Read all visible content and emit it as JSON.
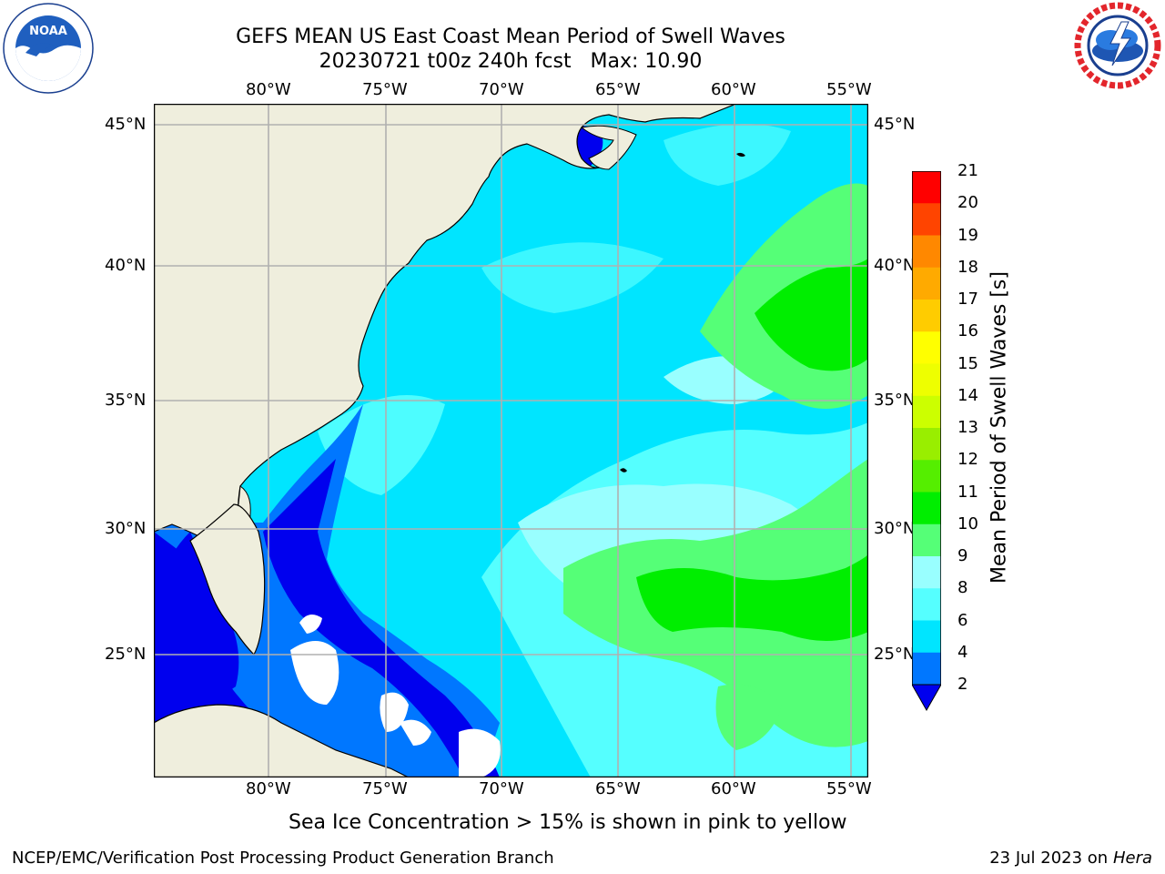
{
  "header": {
    "title_line1": "GEFS MEAN US East Coast Mean Period of Swell Waves",
    "title_line2": "20230721 t00z 240h fcst   Max: 10.90"
  },
  "logos": {
    "noaa": {
      "text": "NOAA",
      "ring_text": "NATIONAL OCEANIC AND ATMOSPHERIC ADMINISTRATION · U.S. DEPARTMENT OF COMMERCE"
    },
    "nws": {
      "ring_text": "NATIONAL WEATHER SERVICE"
    }
  },
  "map": {
    "lon_labels": [
      "80°W",
      "75°W",
      "70°W",
      "65°W",
      "60°W",
      "55°W"
    ],
    "lat_labels": [
      "45°N",
      "40°N",
      "35°N",
      "30°N",
      "25°N"
    ],
    "land_color": "#efeedd",
    "grid_color": "#b0b0b0",
    "region": "US East Coast / Western North Atlantic",
    "extent": {
      "lon": [
        -85,
        -54
      ],
      "lat": [
        20.5,
        45.8
      ]
    }
  },
  "colorbar": {
    "title": "Mean Period of Swell Waves [s]",
    "ticks": [
      "2",
      "4",
      "6",
      "8",
      "9",
      "10",
      "11",
      "12",
      "13",
      "14",
      "15",
      "16",
      "17",
      "18",
      "19",
      "20",
      "21"
    ],
    "colors": [
      "#0000ee",
      "#0077ff",
      "#00e5ff",
      "#55ffff",
      "#99ffff",
      "#55ff77",
      "#00ee00",
      "#55ee00",
      "#99ee00",
      "#ccff00",
      "#eeff00",
      "#ffff00",
      "#ffcc00",
      "#ffaa00",
      "#ff8800",
      "#ff4400",
      "#ff0000"
    ],
    "under_color": "#0000ee"
  },
  "note": "Sea Ice Concentration > 15% is shown in pink to yellow",
  "footer": {
    "left": "NCEP/EMC/Verification Post Processing Product Generation Branch",
    "right_date": "23 Jul 2023 on ",
    "right_host": "Hera"
  }
}
